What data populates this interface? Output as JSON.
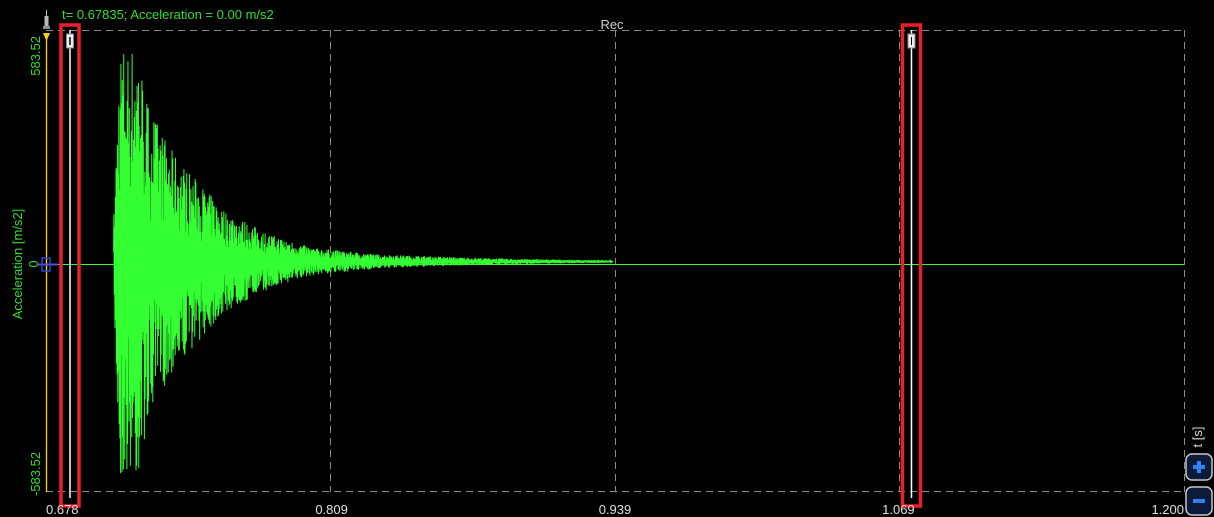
{
  "readout": "t= 0.67835; Acceleration = 0.00 m/s2",
  "channel_label": "Rec",
  "y_axis": {
    "label": "Acceleration [m/s2]",
    "max_label": "583.52",
    "zero_label": "0",
    "min_label": "-583.52"
  },
  "x_axis": {
    "label": "t [s]",
    "tick_labels": [
      "0.678",
      "0.809",
      "0.939",
      "1.069",
      "1.200"
    ]
  },
  "zoom": {
    "in_icon": "plus-icon",
    "out_icon": "minus-icon"
  },
  "colors": {
    "background": "#000000",
    "signal": "#33ff33",
    "axis_text": "#33dd33",
    "grid": "#8a8a8a",
    "cursor": "#ffffff",
    "highlight": "#e8202a",
    "y_axis_line": "#ffd700",
    "ui_blue": "#1e6fd9"
  },
  "chart_data": {
    "type": "line",
    "xlabel": "t [s]",
    "ylabel": "Acceleration [m/s2]",
    "title": "Rec",
    "xlim": [
      0.678,
      1.2
    ],
    "ylim": [
      -583.52,
      583.52
    ],
    "x_ticks": [
      0.678,
      0.809,
      0.939,
      1.069,
      1.2
    ],
    "grid": true,
    "cursors": [
      0.689,
      1.075
    ],
    "series": [
      {
        "name": "Rec",
        "signal_start": 0.709,
        "signal_end": 0.938,
        "envelope": {
          "x": [
            0.709,
            0.712,
            0.716,
            0.72,
            0.724,
            0.73,
            0.736,
            0.745,
            0.76,
            0.78,
            0.8,
            0.83,
            0.87,
            0.9,
            0.938
          ],
          "amplitude": [
            100,
            560,
            540,
            560,
            420,
            340,
            280,
            220,
            130,
            70,
            35,
            18,
            10,
            6,
            3
          ]
        }
      }
    ]
  }
}
